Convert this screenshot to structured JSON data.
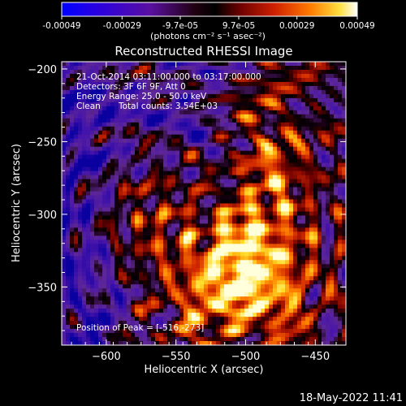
{
  "colorbar": {
    "tick_labels": [
      "-0.00049",
      "-0.00029",
      "-9.7e-05",
      "9.7e-05",
      "0.00029",
      "0.00049"
    ],
    "units_label": "(photons cm⁻² s⁻¹ asec⁻²)",
    "range": [
      -0.00049,
      0.00049
    ],
    "colormap": [
      "#0000ff",
      "#3b00c8",
      "#6a1090",
      "#1a0010",
      "#5a0000",
      "#c01000",
      "#ff5000",
      "#ffb000",
      "#ffff60",
      "#ffffff"
    ]
  },
  "chart_data": {
    "type": "heatmap",
    "title": "Reconstructed RHESSI Image",
    "xlabel": "Heliocentric X (arcsec)",
    "ylabel": "Heliocentric Y (arcsec)",
    "xlim": [
      -632,
      -428
    ],
    "ylim": [
      -390,
      -195
    ],
    "x_ticks": [
      -600,
      -550,
      -500,
      -450
    ],
    "y_ticks": [
      -200,
      -250,
      -300,
      -350
    ],
    "x_tick_labels": [
      "−600",
      "−550",
      "−500",
      "−450"
    ],
    "y_tick_labels": [
      "−200",
      "−250",
      "−300",
      "−350"
    ],
    "annotations": [
      "21-Oct-2014 03:11:00.000 to 03:17:00.000",
      "Detectors: 3F 6F 9F, Att 0",
      "Energy Range: 25.0 - 50.0 keV",
      "Clean",
      "Total counts: 3.54E+03",
      "Position of Peak = [-516,-273]"
    ],
    "peak": [
      -516,
      -273
    ],
    "grid": false
  },
  "footer": {
    "timestamp": "18-May-2022 11:41"
  }
}
